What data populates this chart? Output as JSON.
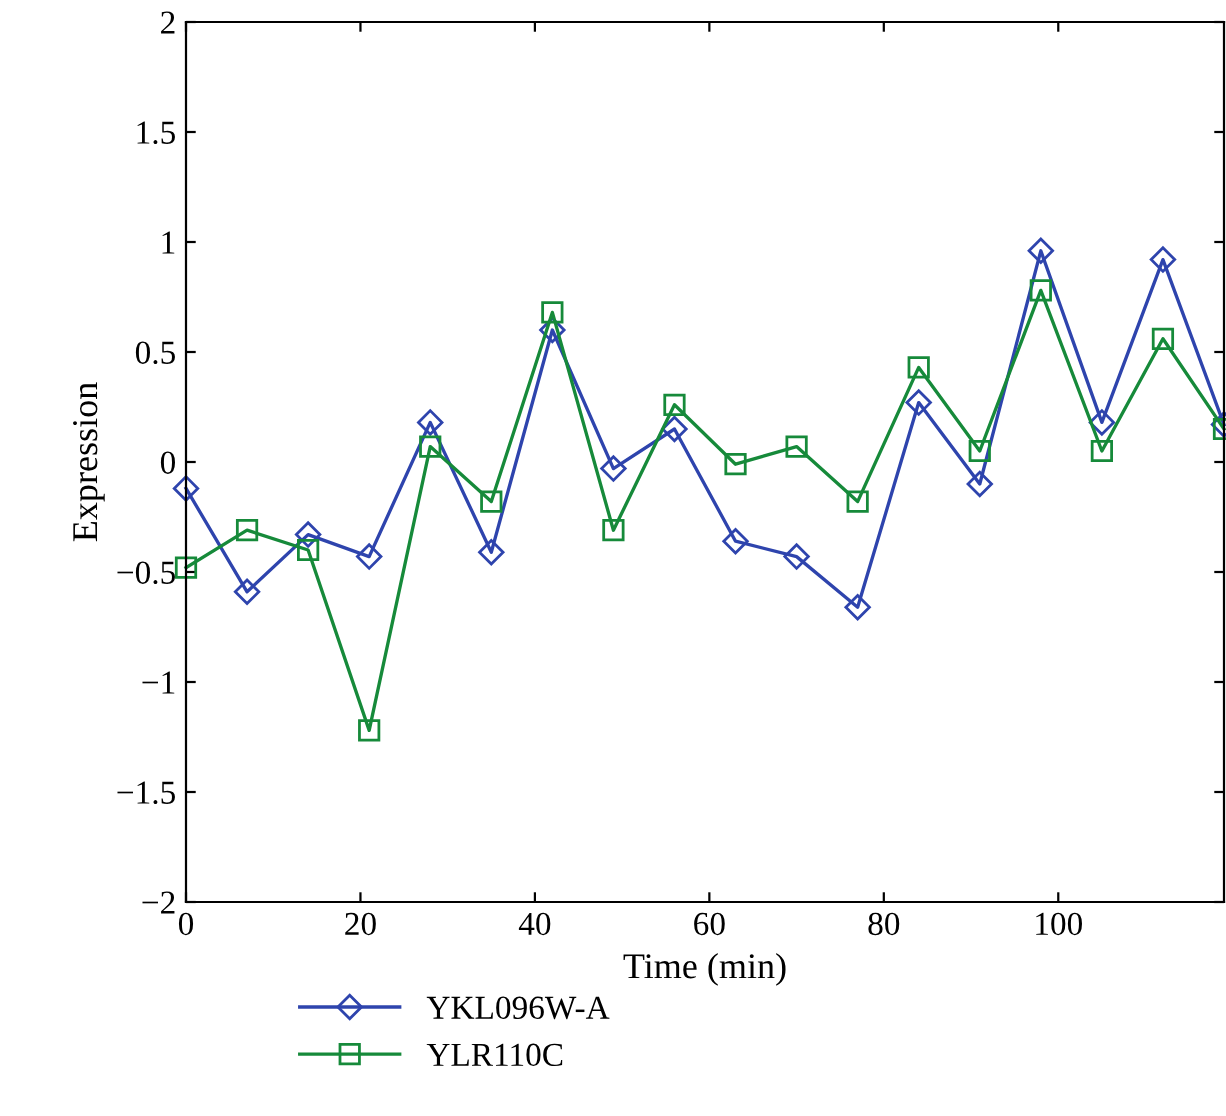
{
  "chart_data": {
    "type": "line",
    "xlabel": "Time (min)",
    "ylabel": "Expression",
    "x": [
      0,
      7,
      14,
      21,
      28,
      35,
      42,
      49,
      56,
      63,
      70,
      77,
      84,
      91,
      98,
      105,
      112,
      119
    ],
    "series": [
      {
        "name": "YKL096W-A",
        "color": "#2e44ad",
        "marker": "diamond",
        "values": [
          -0.12,
          -0.59,
          -0.33,
          -0.43,
          0.18,
          -0.41,
          0.6,
          -0.03,
          0.15,
          -0.36,
          -0.43,
          -0.66,
          0.27,
          -0.1,
          0.96,
          0.18,
          0.92,
          0.17
        ]
      },
      {
        "name": "YLR110C",
        "color": "#168a3a",
        "marker": "square",
        "values": [
          -0.48,
          -0.31,
          -0.4,
          -1.22,
          0.07,
          -0.18,
          0.68,
          -0.31,
          0.26,
          -0.01,
          0.07,
          -0.18,
          0.43,
          0.05,
          0.78,
          0.05,
          0.56,
          0.15
        ]
      }
    ],
    "xlim": [
      0,
      119
    ],
    "xticks": [
      0,
      20,
      40,
      60,
      80,
      100
    ],
    "ylim": [
      -2,
      2
    ],
    "yticks": [
      -2,
      -1.5,
      -1,
      -0.5,
      0,
      0.5,
      1,
      1.5,
      2
    ],
    "grid": false,
    "legend": "bottom left",
    "line_style": "solid"
  }
}
